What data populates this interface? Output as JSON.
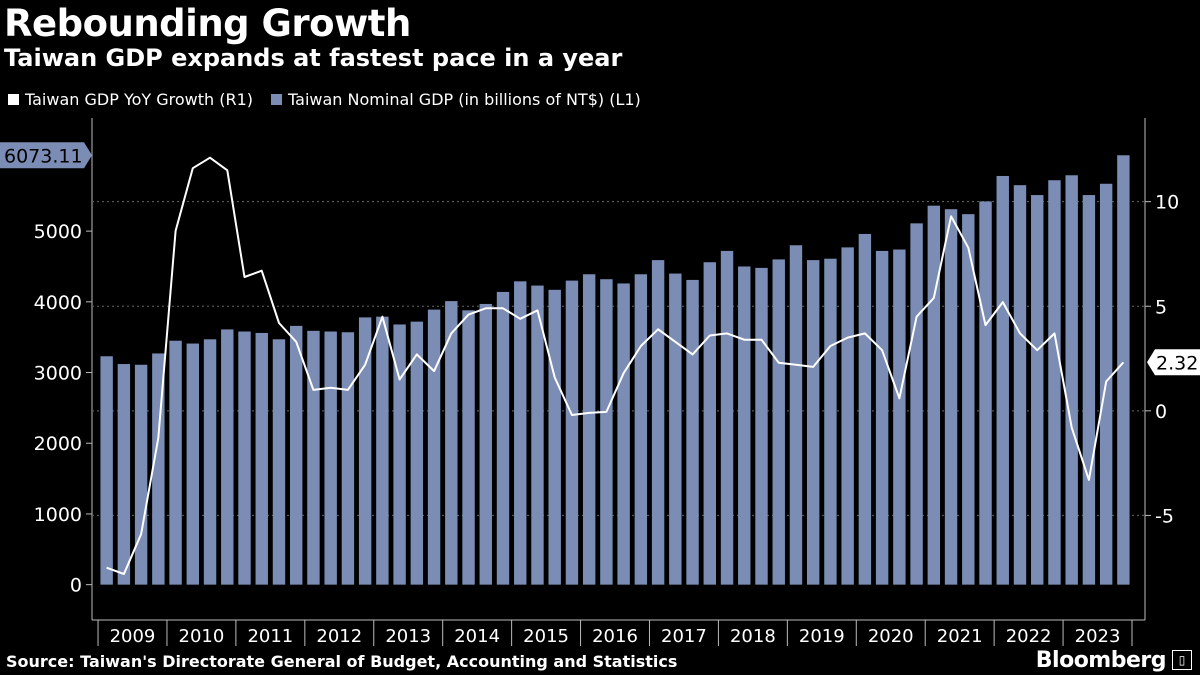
{
  "colors": {
    "bar": "#7b8db5",
    "line": "#ffffff",
    "grid": "#666666",
    "background": "#000000"
  },
  "footer": {
    "source": "Source: Taiwan's Directorate General of Budget, Accounting and Statistics",
    "brand": "Bloomberg"
  },
  "chart_data": {
    "type": "bar",
    "title": "Rebounding Growth",
    "subtitle": "Taiwan GDP expands at fastest pace in a year",
    "legend": [
      {
        "name": "Taiwan GDP YoY Growth (R1)",
        "color": "#ffffff"
      },
      {
        "name": "Taiwan Nominal GDP (in billions of NT$) (L1)",
        "color": "#7b8db5"
      }
    ],
    "x_labels": [
      "2009",
      "2010",
      "2011",
      "2012",
      "2013",
      "2014",
      "2015",
      "2016",
      "2017",
      "2018",
      "2019",
      "2020",
      "2021",
      "2022",
      "2023"
    ],
    "left_axis": {
      "min": -500,
      "max": 6600,
      "ticks": [
        0,
        1000,
        2000,
        3000,
        4000,
        5000
      ]
    },
    "right_axis": {
      "min": -10,
      "max": 14,
      "ticks": [
        -5,
        0,
        5,
        10
      ]
    },
    "series": [
      {
        "name": "Taiwan Nominal GDP (in billions of NT$)",
        "axis": "left",
        "kind": "bar",
        "values": [
          3230,
          3120,
          3110,
          3270,
          3450,
          3410,
          3470,
          3610,
          3580,
          3560,
          3470,
          3660,
          3590,
          3580,
          3570,
          3780,
          3790,
          3680,
          3720,
          3890,
          4010,
          3880,
          3970,
          4140,
          4290,
          4230,
          4170,
          4300,
          4390,
          4320,
          4260,
          4390,
          4590,
          4400,
          4310,
          4560,
          4720,
          4500,
          4480,
          4600,
          4800,
          4590,
          4610,
          4770,
          4960,
          4720,
          4740,
          5110,
          5360,
          5310,
          5240,
          5420,
          5780,
          5650,
          5510,
          5720,
          5790,
          5510,
          5670,
          6073.11
        ]
      },
      {
        "name": "Taiwan GDP YoY Growth",
        "axis": "right",
        "kind": "line",
        "values": [
          -7.5,
          -7.8,
          -5.9,
          -1.3,
          8.6,
          11.6,
          12.1,
          11.5,
          6.4,
          6.7,
          4.2,
          3.3,
          1.0,
          1.1,
          1.0,
          2.2,
          4.5,
          1.5,
          2.7,
          1.9,
          3.7,
          4.6,
          4.9,
          4.9,
          4.4,
          4.8,
          1.6,
          -0.2,
          -0.1,
          -0.05,
          1.8,
          3.1,
          3.9,
          3.3,
          2.7,
          3.6,
          3.7,
          3.4,
          3.4,
          2.3,
          2.2,
          2.1,
          3.1,
          3.5,
          3.7,
          2.9,
          0.6,
          4.5,
          5.4,
          9.3,
          7.8,
          4.1,
          5.2,
          3.7,
          2.9,
          3.7,
          -0.8,
          -3.3,
          1.4,
          2.32
        ]
      }
    ],
    "labels": {
      "left_last": "6073.11",
      "right_last": "2.32"
    }
  }
}
